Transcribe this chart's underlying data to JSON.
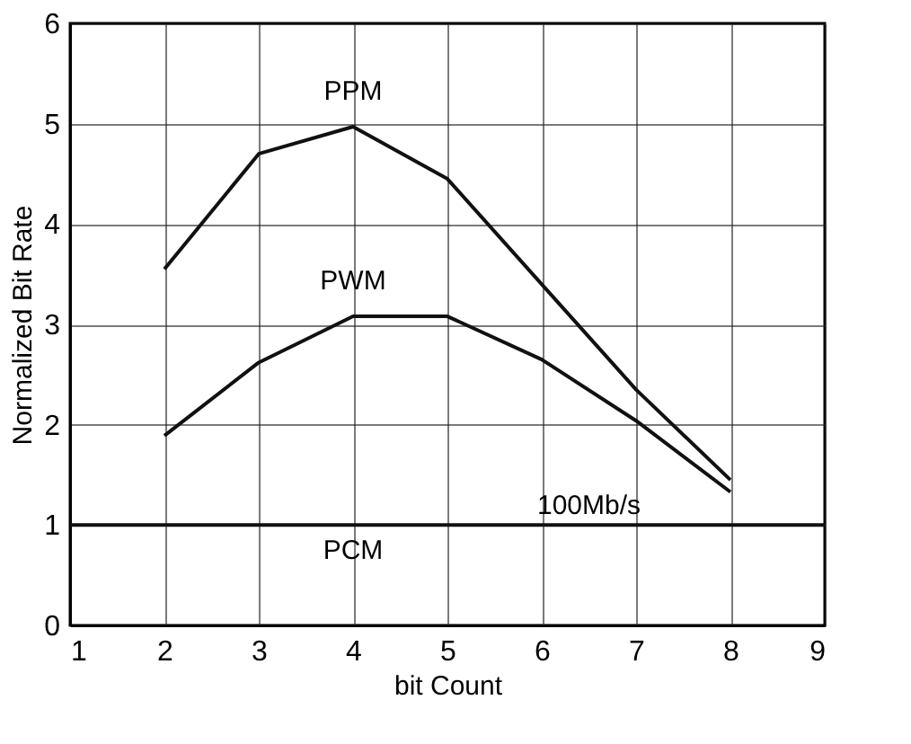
{
  "chart_data": {
    "type": "line",
    "xlabel": "bit Count",
    "ylabel": "Normalized Bit Rate",
    "x": [
      2,
      3,
      4,
      5,
      6,
      7,
      8
    ],
    "series": [
      {
        "name": "PPM",
        "color": "#111111",
        "values": [
          3.55,
          4.7,
          4.97,
          4.45,
          3.4,
          2.35,
          1.45
        ]
      },
      {
        "name": "PWM",
        "color": "#111111",
        "values": [
          1.89,
          2.62,
          3.08,
          3.08,
          2.65,
          2.04,
          1.33
        ]
      },
      {
        "name": "PCM",
        "color": "#111111",
        "x": [
          1,
          9
        ],
        "values": [
          1,
          1
        ]
      }
    ],
    "annotations": [
      {
        "text": "100Mb/s",
        "x": 6.5,
        "y": 1
      }
    ],
    "xlim": [
      1,
      9
    ],
    "xticks": [
      1,
      2,
      3,
      4,
      5,
      6,
      7,
      8,
      9
    ],
    "ylim": [
      0,
      6
    ],
    "yticks": [
      0,
      1,
      2,
      3,
      4,
      5,
      6
    ],
    "grid": true,
    "legend": false,
    "marker": "none",
    "line_style": "solid"
  }
}
